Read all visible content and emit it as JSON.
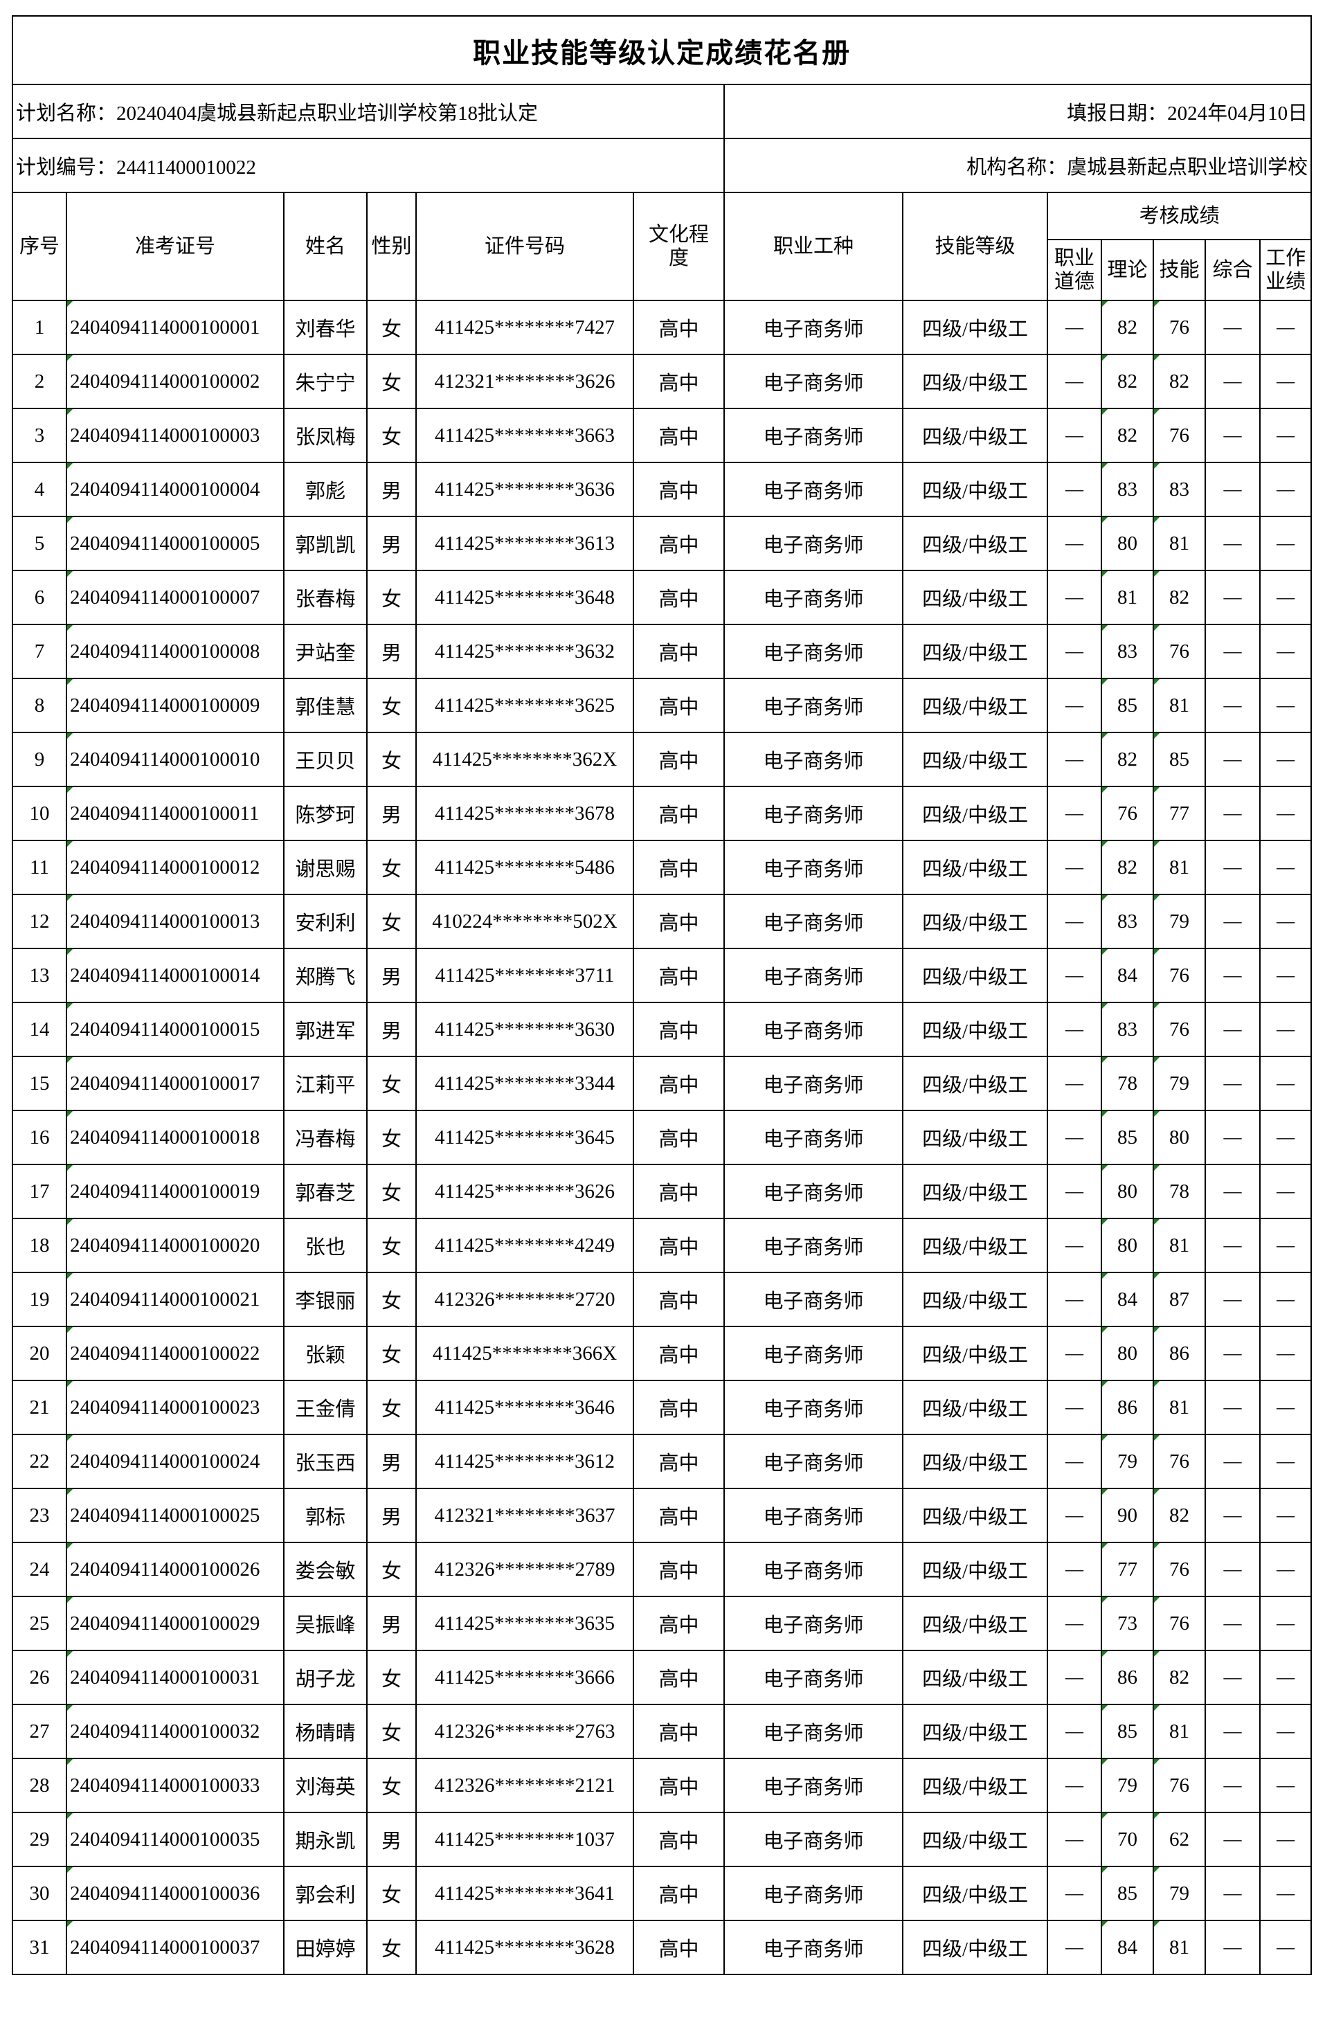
{
  "title": "职业技能等级认定成绩花名册",
  "plan_name": "计划名称：20240404虞城县新起点职业培训学校第18批认定",
  "fill_date": "填报日期：2024年04月10日",
  "plan_code": "计划编号：24411400010022",
  "org_name": "机构名称：虞城县新起点职业培训学校",
  "headers": {
    "seq": "序号",
    "ticket": "准考证号",
    "name": "姓名",
    "gender": "性别",
    "id_no": "证件号码",
    "education": "文化程度",
    "occupation": "职业工种",
    "level": "技能等级",
    "scores": "考核成绩",
    "ethics": "职业道德",
    "theory": "理论",
    "skill": "技能",
    "overall": "综合",
    "performance": "工作业绩"
  },
  "rows": [
    [
      "1",
      "2404094114000100001",
      "刘春华",
      "女",
      "411425********7427",
      "高中",
      "电子商务师",
      "四级/中级工",
      "—",
      "82",
      "76",
      "—",
      "—"
    ],
    [
      "2",
      "2404094114000100002",
      "朱宁宁",
      "女",
      "412321********3626",
      "高中",
      "电子商务师",
      "四级/中级工",
      "—",
      "82",
      "82",
      "—",
      "—"
    ],
    [
      "3",
      "2404094114000100003",
      "张凤梅",
      "女",
      "411425********3663",
      "高中",
      "电子商务师",
      "四级/中级工",
      "—",
      "82",
      "76",
      "—",
      "—"
    ],
    [
      "4",
      "2404094114000100004",
      "郭彪",
      "男",
      "411425********3636",
      "高中",
      "电子商务师",
      "四级/中级工",
      "—",
      "83",
      "83",
      "—",
      "—"
    ],
    [
      "5",
      "2404094114000100005",
      "郭凯凯",
      "男",
      "411425********3613",
      "高中",
      "电子商务师",
      "四级/中级工",
      "—",
      "80",
      "81",
      "—",
      "—"
    ],
    [
      "6",
      "2404094114000100007",
      "张春梅",
      "女",
      "411425********3648",
      "高中",
      "电子商务师",
      "四级/中级工",
      "—",
      "81",
      "82",
      "—",
      "—"
    ],
    [
      "7",
      "2404094114000100008",
      "尹站奎",
      "男",
      "411425********3632",
      "高中",
      "电子商务师",
      "四级/中级工",
      "—",
      "83",
      "76",
      "—",
      "—"
    ],
    [
      "8",
      "2404094114000100009",
      "郭佳慧",
      "女",
      "411425********3625",
      "高中",
      "电子商务师",
      "四级/中级工",
      "—",
      "85",
      "81",
      "—",
      "—"
    ],
    [
      "9",
      "2404094114000100010",
      "王贝贝",
      "女",
      "411425********362X",
      "高中",
      "电子商务师",
      "四级/中级工",
      "—",
      "82",
      "85",
      "—",
      "—"
    ],
    [
      "10",
      "2404094114000100011",
      "陈梦珂",
      "男",
      "411425********3678",
      "高中",
      "电子商务师",
      "四级/中级工",
      "—",
      "76",
      "77",
      "—",
      "—"
    ],
    [
      "11",
      "2404094114000100012",
      "谢思赐",
      "女",
      "411425********5486",
      "高中",
      "电子商务师",
      "四级/中级工",
      "—",
      "82",
      "81",
      "—",
      "—"
    ],
    [
      "12",
      "2404094114000100013",
      "安利利",
      "女",
      "410224********502X",
      "高中",
      "电子商务师",
      "四级/中级工",
      "—",
      "83",
      "79",
      "—",
      "—"
    ],
    [
      "13",
      "2404094114000100014",
      "郑腾飞",
      "男",
      "411425********3711",
      "高中",
      "电子商务师",
      "四级/中级工",
      "—",
      "84",
      "76",
      "—",
      "—"
    ],
    [
      "14",
      "2404094114000100015",
      "郭进军",
      "男",
      "411425********3630",
      "高中",
      "电子商务师",
      "四级/中级工",
      "—",
      "83",
      "76",
      "—",
      "—"
    ],
    [
      "15",
      "2404094114000100017",
      "江莉平",
      "女",
      "411425********3344",
      "高中",
      "电子商务师",
      "四级/中级工",
      "—",
      "78",
      "79",
      "—",
      "—"
    ],
    [
      "16",
      "2404094114000100018",
      "冯春梅",
      "女",
      "411425********3645",
      "高中",
      "电子商务师",
      "四级/中级工",
      "—",
      "85",
      "80",
      "—",
      "—"
    ],
    [
      "17",
      "2404094114000100019",
      "郭春芝",
      "女",
      "411425********3626",
      "高中",
      "电子商务师",
      "四级/中级工",
      "—",
      "80",
      "78",
      "—",
      "—"
    ],
    [
      "18",
      "2404094114000100020",
      "张也",
      "女",
      "411425********4249",
      "高中",
      "电子商务师",
      "四级/中级工",
      "—",
      "80",
      "81",
      "—",
      "—"
    ],
    [
      "19",
      "2404094114000100021",
      "李银丽",
      "女",
      "412326********2720",
      "高中",
      "电子商务师",
      "四级/中级工",
      "—",
      "84",
      "87",
      "—",
      "—"
    ],
    [
      "20",
      "2404094114000100022",
      "张颖",
      "女",
      "411425********366X",
      "高中",
      "电子商务师",
      "四级/中级工",
      "—",
      "80",
      "86",
      "—",
      "—"
    ],
    [
      "21",
      "2404094114000100023",
      "王金倩",
      "女",
      "411425********3646",
      "高中",
      "电子商务师",
      "四级/中级工",
      "—",
      "86",
      "81",
      "—",
      "—"
    ],
    [
      "22",
      "2404094114000100024",
      "张玉西",
      "男",
      "411425********3612",
      "高中",
      "电子商务师",
      "四级/中级工",
      "—",
      "79",
      "76",
      "—",
      "—"
    ],
    [
      "23",
      "2404094114000100025",
      "郭标",
      "男",
      "412321********3637",
      "高中",
      "电子商务师",
      "四级/中级工",
      "—",
      "90",
      "82",
      "—",
      "—"
    ],
    [
      "24",
      "2404094114000100026",
      "娄会敏",
      "女",
      "412326********2789",
      "高中",
      "电子商务师",
      "四级/中级工",
      "—",
      "77",
      "76",
      "—",
      "—"
    ],
    [
      "25",
      "2404094114000100029",
      "吴振峰",
      "男",
      "411425********3635",
      "高中",
      "电子商务师",
      "四级/中级工",
      "—",
      "73",
      "76",
      "—",
      "—"
    ],
    [
      "26",
      "2404094114000100031",
      "胡子龙",
      "女",
      "411425********3666",
      "高中",
      "电子商务师",
      "四级/中级工",
      "—",
      "86",
      "82",
      "—",
      "—"
    ],
    [
      "27",
      "2404094114000100032",
      "杨晴晴",
      "女",
      "412326********2763",
      "高中",
      "电子商务师",
      "四级/中级工",
      "—",
      "85",
      "81",
      "—",
      "—"
    ],
    [
      "28",
      "2404094114000100033",
      "刘海英",
      "女",
      "412326********2121",
      "高中",
      "电子商务师",
      "四级/中级工",
      "—",
      "79",
      "76",
      "—",
      "—"
    ],
    [
      "29",
      "2404094114000100035",
      "期永凯",
      "男",
      "411425********1037",
      "高中",
      "电子商务师",
      "四级/中级工",
      "—",
      "70",
      "62",
      "—",
      "—"
    ],
    [
      "30",
      "2404094114000100036",
      "郭会利",
      "女",
      "411425********3641",
      "高中",
      "电子商务师",
      "四级/中级工",
      "—",
      "85",
      "79",
      "—",
      "—"
    ],
    [
      "31",
      "2404094114000100037",
      "田婷婷",
      "女",
      "411425********3628",
      "高中",
      "电子商务师",
      "四级/中级工",
      "—",
      "84",
      "81",
      "—",
      "—"
    ]
  ],
  "colors": {
    "border": "#000000",
    "cell_marker": "#1a7f1a"
  }
}
